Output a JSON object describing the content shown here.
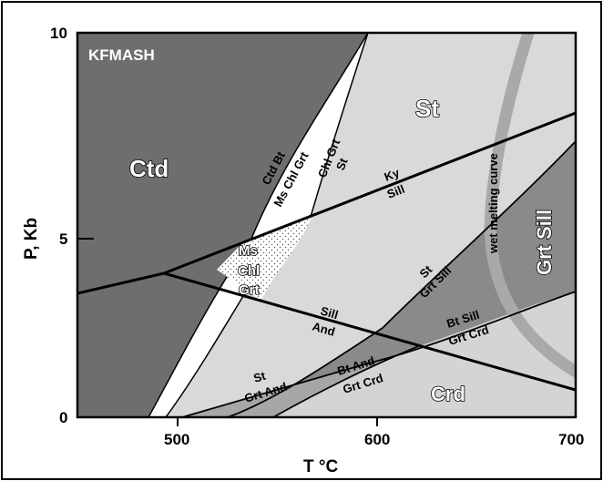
{
  "diagram": {
    "system_label": "KFMASH",
    "axes": {
      "x_label": "T °C",
      "y_label": "P, Kb",
      "x_ticks": [
        "500",
        "600",
        "700"
      ],
      "y_ticks": [
        "0",
        "5",
        "10"
      ],
      "x_range": [
        450,
        700
      ],
      "y_range": [
        0,
        10
      ]
    },
    "fields": {
      "ctd": "Ctd",
      "st": "St",
      "crd": "Crd",
      "grt_sill": "Grt Sill",
      "ms_chl_grt": [
        "Ms",
        "Chl",
        "Grt"
      ]
    },
    "reaction_labels": {
      "ctd_bt": "Ctd Bt",
      "ms_chl_grt_line": "Ms Chl Grt",
      "chl_grt": "Chl Grt",
      "st_upper": "St",
      "ky": "Ky",
      "sill_upper": "Sill",
      "wet_melting": "wet melting curve",
      "st_grt_sill_top": "St",
      "st_grt_sill_bottom": "Grt Sill",
      "sill_lower": "Sill",
      "and_lower": "And",
      "bt_sill": "Bt Sill",
      "grt_crd_right": "Grt Crd",
      "st_grt_and_top": "St",
      "st_grt_and_bottom": "Grt And",
      "bt_and": "Bt And",
      "grt_crd_bottom": "Grt Crd"
    },
    "colors": {
      "dark_field": "#6e6e6e",
      "light_field": "#d9d9d9",
      "mid_field": "#9c9c9c",
      "white_field": "#ffffff",
      "melting_curve": "#a9a9a9"
    }
  }
}
